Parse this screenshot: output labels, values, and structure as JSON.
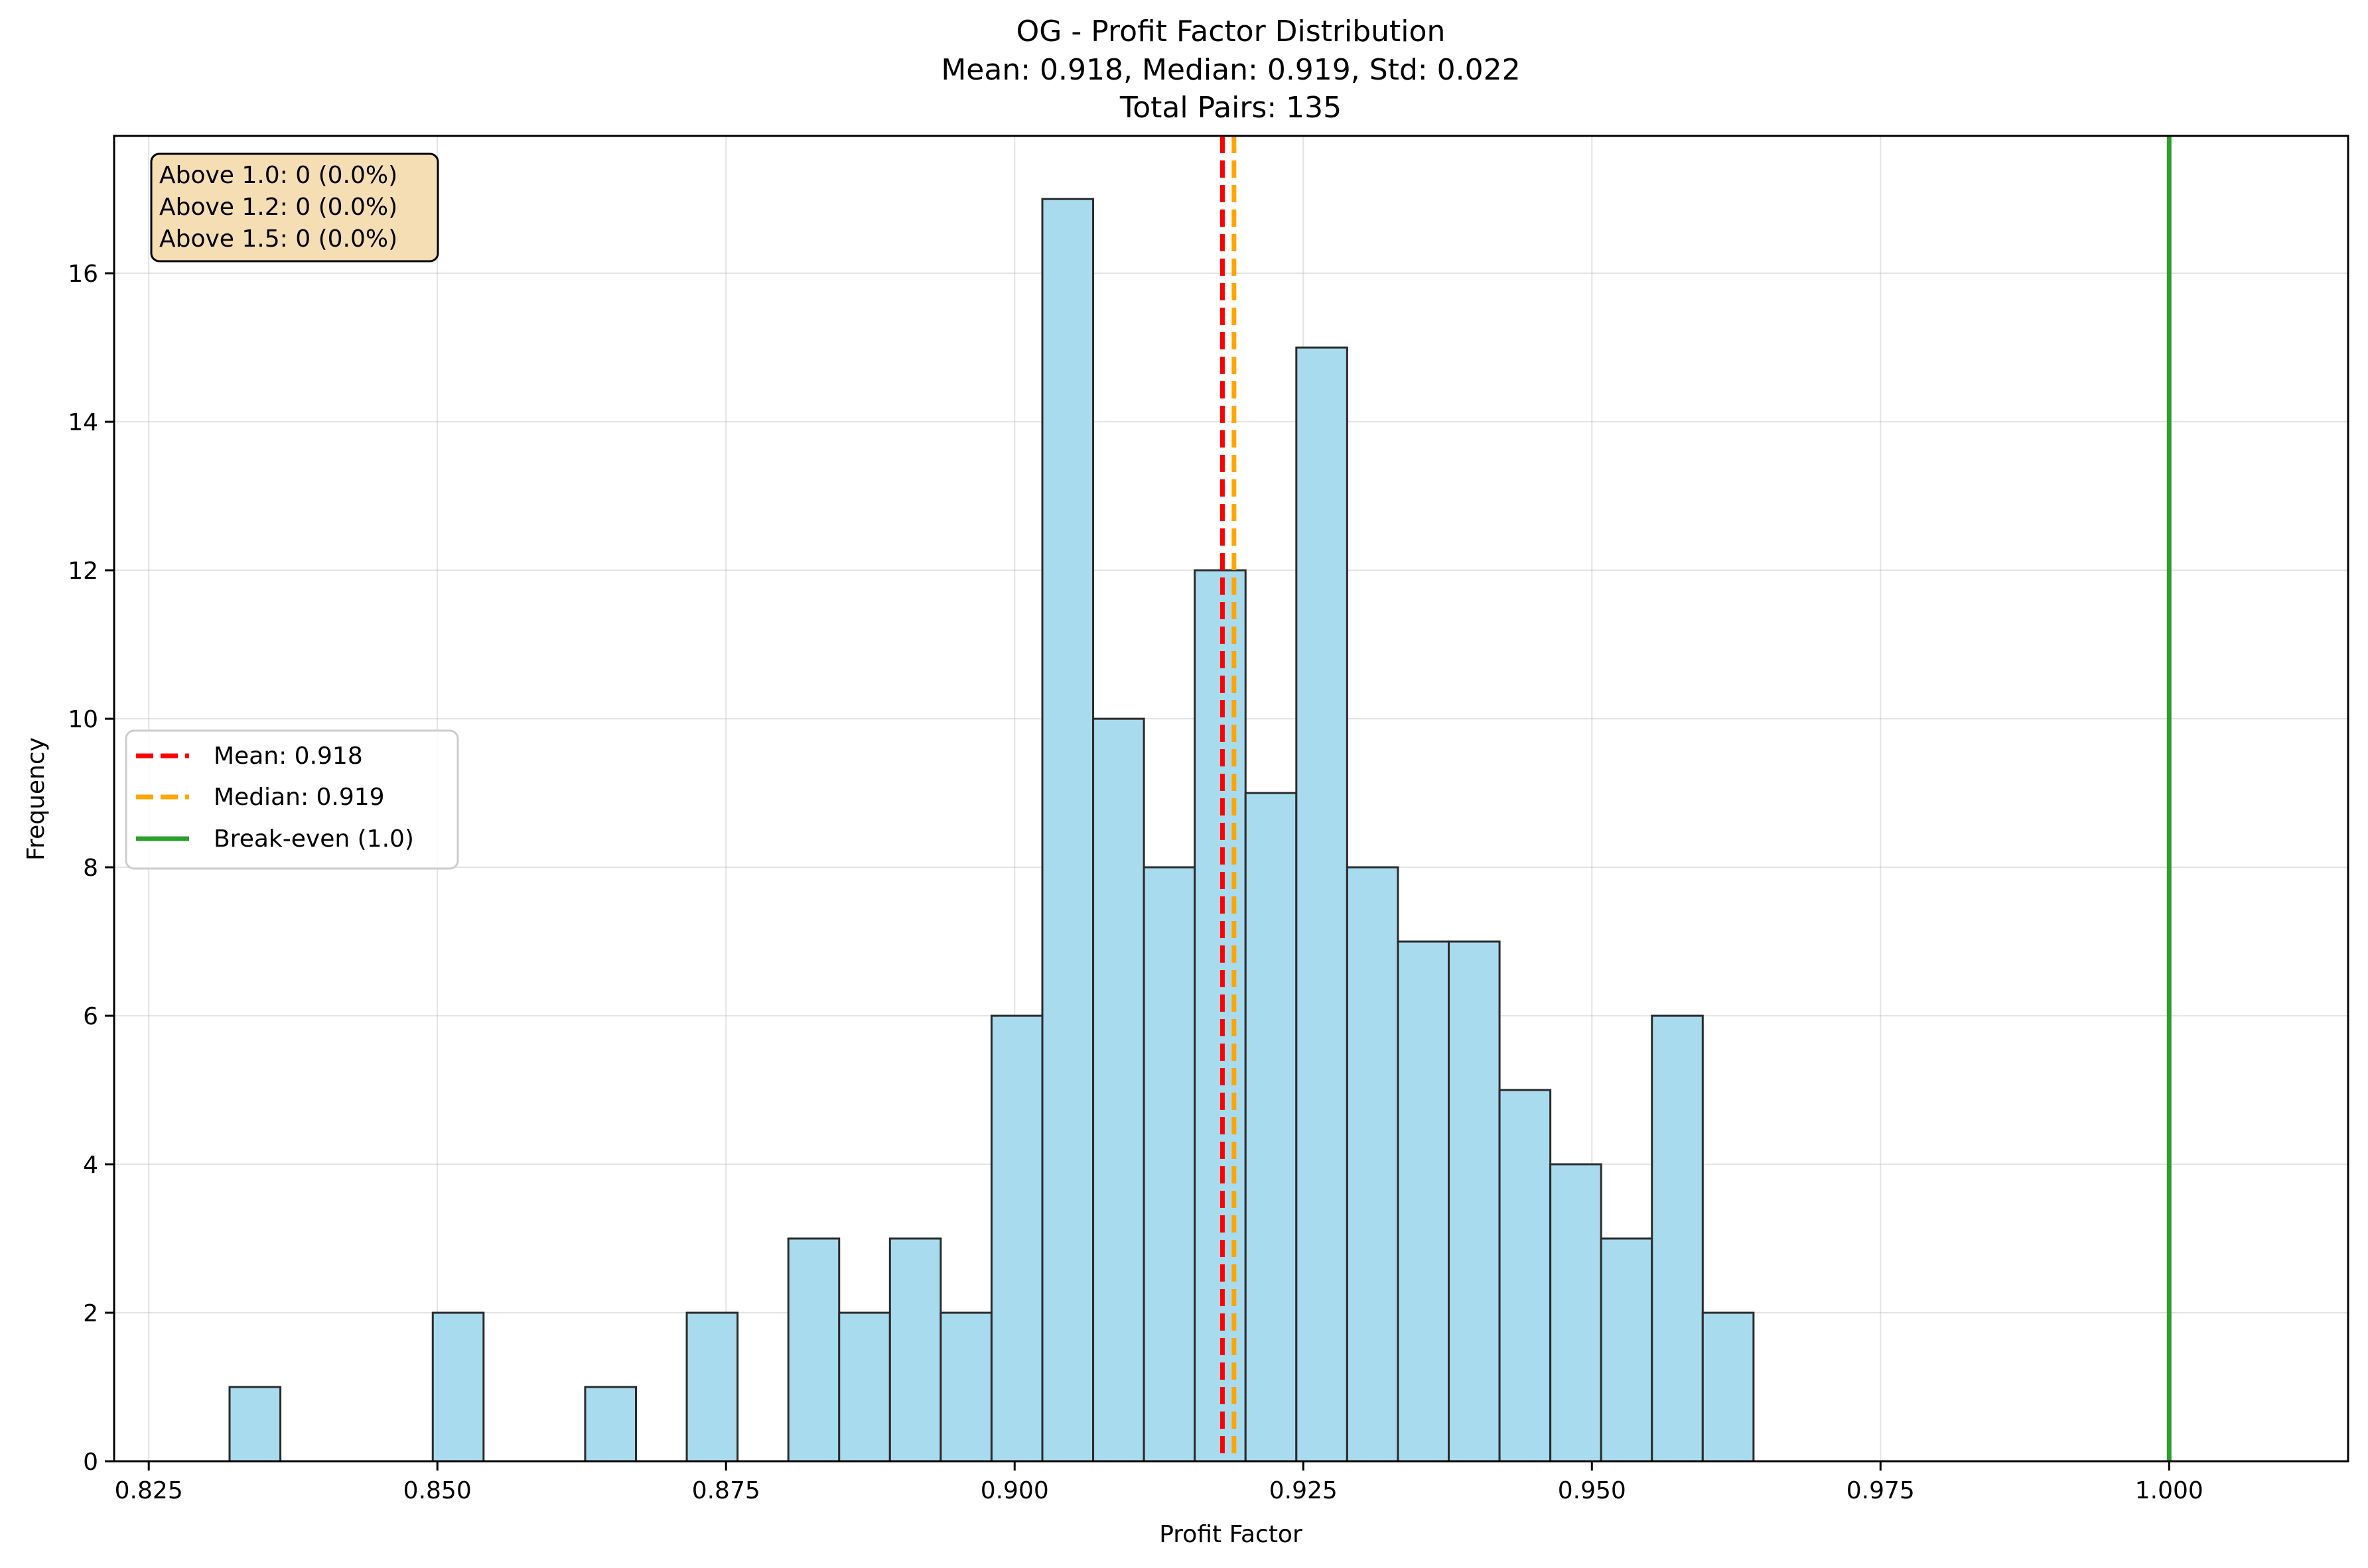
{
  "chart_data": {
    "type": "bar",
    "title": "OG - Profit Factor Distribution",
    "subtitle_stats": "Mean: 0.918, Median: 0.919, Std: 0.022",
    "subtitle_total": "Total Pairs: 135",
    "xlabel": "Profit Factor",
    "ylabel": "Frequency",
    "xlim": [
      0.822,
      1.0155
    ],
    "ylim": [
      0,
      17.85
    ],
    "grid": true,
    "x_ticks": [
      0.825,
      0.85,
      0.875,
      0.9,
      0.925,
      0.95,
      0.975,
      1.0
    ],
    "x_tick_labels": [
      "0.825",
      "0.850",
      "0.875",
      "0.900",
      "0.925",
      "0.950",
      "0.975",
      "1.000"
    ],
    "y_ticks": [
      0,
      2,
      4,
      6,
      8,
      10,
      12,
      14,
      16
    ],
    "y_tick_labels": [
      "0",
      "2",
      "4",
      "6",
      "8",
      "10",
      "12",
      "14",
      "16"
    ],
    "bin_start": 0.832,
    "bin_width": 0.0044,
    "counts": [
      1,
      0,
      0,
      0,
      2,
      0,
      0,
      1,
      0,
      2,
      0,
      3,
      2,
      3,
      2,
      6,
      17,
      10,
      8,
      12,
      9,
      15,
      8,
      7,
      7,
      5,
      4,
      3,
      6,
      2
    ],
    "bar_color": "#a9dbef",
    "bar_edge": "#2b2b2b",
    "lines": [
      {
        "name": "mean",
        "x": 0.918,
        "label": "Mean: 0.918",
        "color": "#ff0000",
        "dashed": true
      },
      {
        "name": "median",
        "x": 0.919,
        "label": "Median: 0.919",
        "color": "#ffa500",
        "dashed": true
      },
      {
        "name": "break-even",
        "x": 1.0,
        "label": "Break-even (1.0)",
        "color": "#2ca02c",
        "dashed": false
      }
    ],
    "legend_location": "center-left",
    "annotation": {
      "lines": [
        "Above 1.0: 0 (0.0%)",
        "Above 1.2: 0 (0.0%)",
        "Above 1.5: 0 (0.0%)"
      ],
      "bg_color": "#f5deb3"
    }
  }
}
